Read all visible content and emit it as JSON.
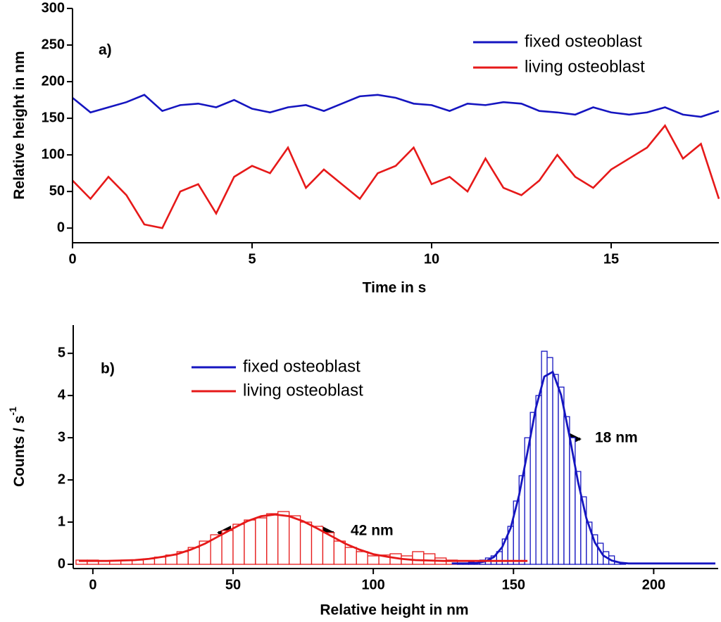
{
  "chart_data": [
    {
      "type": "line",
      "label": "a)",
      "xlabel": "Time in s",
      "ylabel": "Relative height in nm",
      "xlim": [
        0,
        18
      ],
      "ylim": [
        -20,
        300
      ],
      "xticks": [
        0,
        5,
        10,
        15
      ],
      "yticks": [
        0,
        50,
        100,
        150,
        200,
        250,
        300
      ],
      "x": [
        0,
        0.5,
        1,
        1.5,
        2,
        2.5,
        3,
        3.5,
        4,
        4.5,
        5,
        5.5,
        6,
        6.5,
        7,
        7.5,
        8,
        8.5,
        9,
        9.5,
        10,
        10.5,
        11,
        11.5,
        12,
        12.5,
        13,
        13.5,
        14,
        14.5,
        15,
        15.5,
        16,
        16.5,
        17,
        17.5,
        18
      ],
      "series": [
        {
          "name": "fixed osteoblast",
          "color": "#1515c0",
          "values": [
            178,
            158,
            165,
            172,
            182,
            160,
            168,
            170,
            165,
            175,
            163,
            158,
            165,
            168,
            160,
            170,
            180,
            182,
            178,
            170,
            168,
            160,
            170,
            168,
            172,
            170,
            160,
            158,
            155,
            165,
            158,
            155,
            158,
            165,
            155,
            152,
            160
          ]
        },
        {
          "name": "living osteoblast",
          "color": "#e61919",
          "values": [
            65,
            40,
            70,
            45,
            5,
            0,
            50,
            60,
            20,
            70,
            85,
            75,
            110,
            55,
            80,
            60,
            40,
            75,
            85,
            110,
            60,
            70,
            50,
            95,
            55,
            45,
            65,
            100,
            70,
            55,
            80,
            95,
            110,
            140,
            95,
            115,
            40
          ]
        }
      ]
    },
    {
      "type": "histogram",
      "label": "b)",
      "xlabel": "Relative height in nm",
      "ylabel": "Counts / s",
      "ylabel_superscript": "-1",
      "xlim": [
        -7,
        223
      ],
      "ylim": [
        -0.1,
        5.67
      ],
      "xticks": [
        0,
        50,
        100,
        150,
        200
      ],
      "yticks": [
        0,
        1,
        2,
        3,
        4,
        5
      ],
      "annotations": [
        "42 nm",
        "18 nm"
      ],
      "series": [
        {
          "name": "fixed osteoblast",
          "color": "#1515c0",
          "bins": [
            130,
            132,
            134,
            136,
            138,
            140,
            142,
            144,
            146,
            148,
            150,
            152,
            154,
            156,
            158,
            160,
            162,
            164,
            166,
            168,
            170,
            172,
            174,
            176,
            178,
            180,
            182,
            184,
            186,
            188,
            190
          ],
          "counts": [
            0.02,
            0.03,
            0.05,
            0.08,
            0.1,
            0.15,
            0.2,
            0.3,
            0.6,
            0.9,
            1.5,
            2.1,
            3.0,
            3.6,
            4.0,
            5.05,
            4.9,
            4.5,
            4.2,
            3.5,
            3.0,
            2.2,
            1.6,
            1.0,
            0.7,
            0.5,
            0.3,
            0.2,
            0.05,
            0.01
          ],
          "fit": {
            "x": [
              128,
              131,
              134,
              137,
              140,
              143,
              146,
              149,
              152,
              155,
              158,
              161,
              164,
              167,
              170,
              173,
              176,
              179,
              182,
              185,
              188,
              191,
              194,
              197,
              200,
              222
            ],
            "values": [
              0.02,
              0.02,
              0.02,
              0.03,
              0.07,
              0.17,
              0.41,
              0.86,
              1.64,
              2.66,
              3.71,
              4.45,
              4.56,
              4.01,
              3.03,
              1.96,
              1.09,
              0.52,
              0.21,
              0.09,
              0.04,
              0.02,
              0.02,
              0.02,
              0.02,
              0.02
            ]
          }
        },
        {
          "name": "living osteoblast",
          "color": "#e61919",
          "bins": [
            -6,
            -2,
            2,
            6,
            10,
            14,
            18,
            22,
            26,
            30,
            34,
            38,
            42,
            46,
            50,
            54,
            58,
            62,
            66,
            70,
            74,
            78,
            82,
            86,
            90,
            94,
            98,
            102,
            106,
            110,
            114,
            118,
            122,
            126,
            130,
            134,
            138,
            142,
            146,
            150,
            154
          ],
          "counts": [
            0.1,
            0.1,
            0.08,
            0.08,
            0.1,
            0.1,
            0.13,
            0.17,
            0.22,
            0.3,
            0.4,
            0.55,
            0.7,
            0.8,
            0.95,
            1.05,
            1.1,
            1.2,
            1.25,
            1.15,
            1.0,
            0.9,
            0.75,
            0.55,
            0.4,
            0.3,
            0.2,
            0.22,
            0.25,
            0.2,
            0.3,
            0.25,
            0.15,
            0.1,
            0.08,
            0.05,
            0.03,
            0.02,
            0.01,
            0.01
          ],
          "fit": {
            "x": [
              -5,
              0,
              5,
              10,
              15,
              20,
              25,
              30,
              35,
              40,
              45,
              50,
              55,
              60,
              65,
              70,
              75,
              80,
              85,
              90,
              95,
              100,
              105,
              110,
              115,
              120,
              125,
              130,
              135,
              140,
              145,
              150,
              155
            ],
            "values": [
              0.08,
              0.08,
              0.08,
              0.09,
              0.1,
              0.13,
              0.18,
              0.24,
              0.35,
              0.49,
              0.67,
              0.85,
              1.02,
              1.14,
              1.18,
              1.14,
              1.02,
              0.85,
              0.67,
              0.49,
              0.35,
              0.24,
              0.18,
              0.13,
              0.1,
              0.09,
              0.08,
              0.08,
              0.08,
              0.08,
              0.08,
              0.08,
              0.08
            ]
          }
        }
      ]
    }
  ]
}
